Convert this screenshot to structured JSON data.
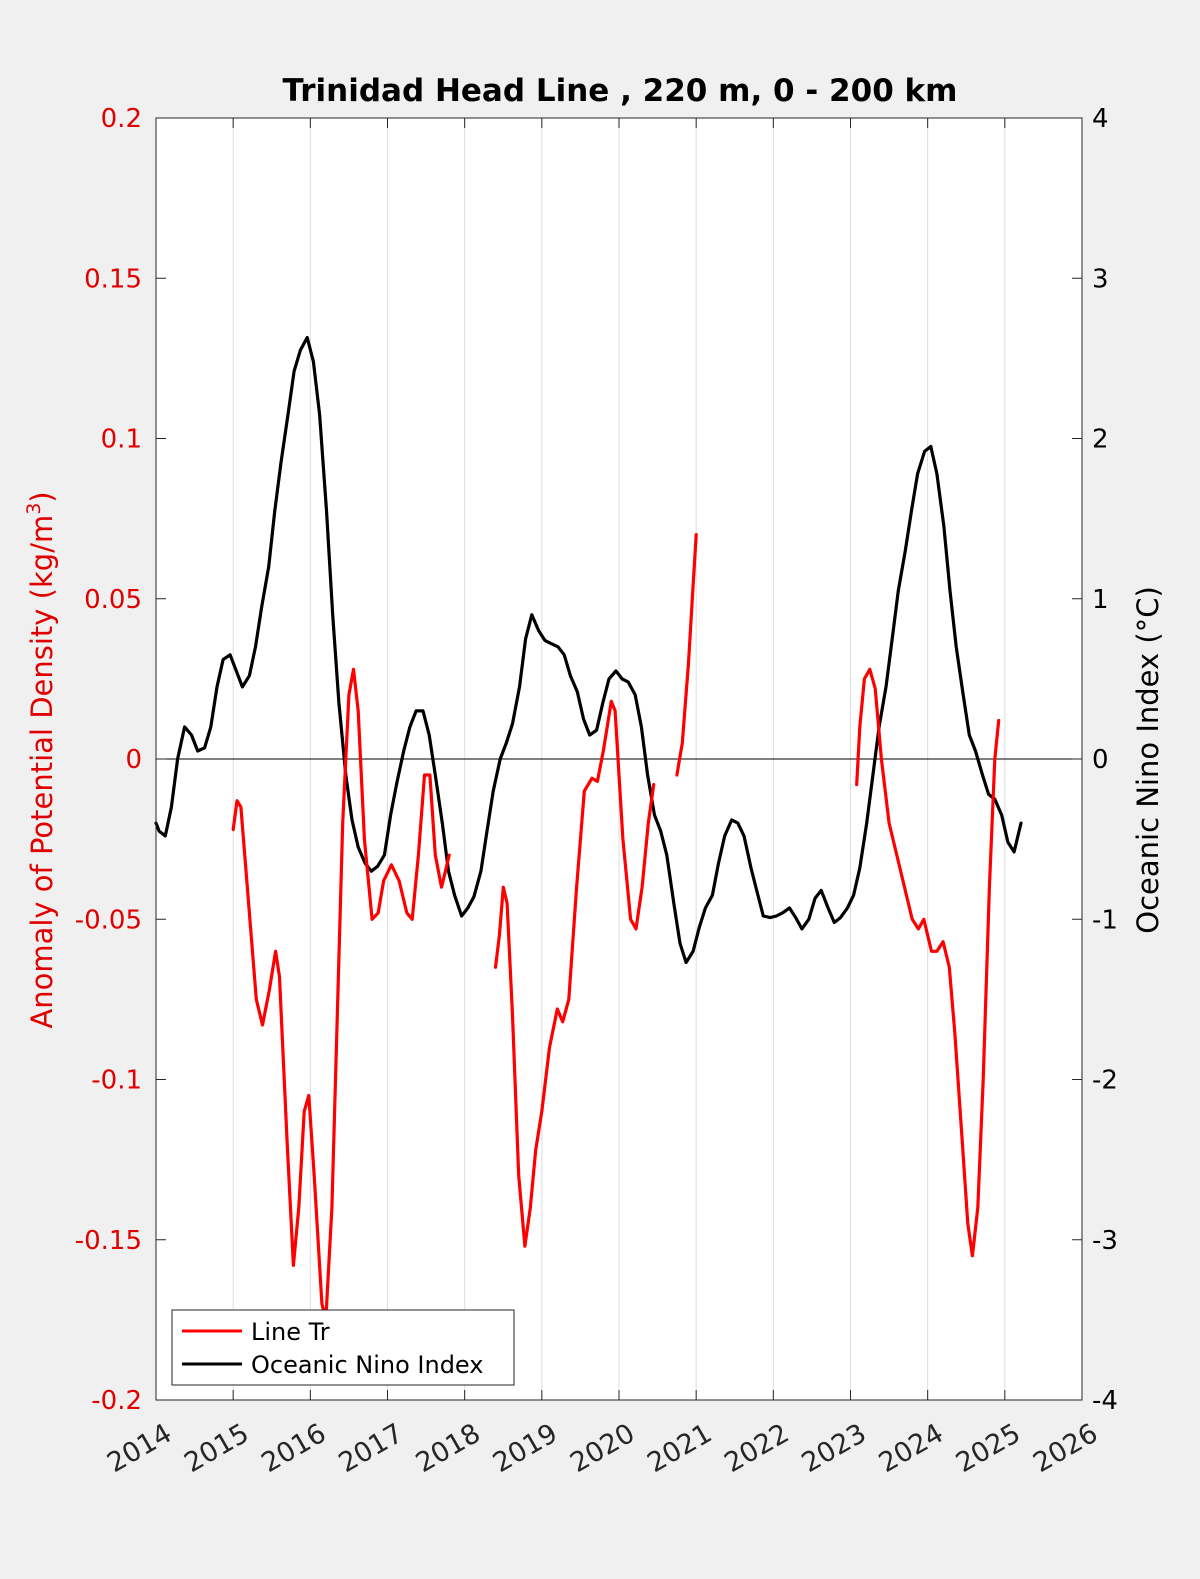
{
  "chart_data": {
    "type": "line",
    "title": "Trinidad Head Line , 220 m, 0 - 200 km",
    "ylabel_left": "Anomaly of Potential Density (kg/m",
    "ylabel_left_sup": "3",
    "ylabel_left_close": ")",
    "ylabel_right": "Oceanic Nino Index (°C)",
    "xlim": [
      2014,
      2026
    ],
    "ylim_left": [
      -0.2,
      0.2
    ],
    "ylim_right": [
      -4,
      4
    ],
    "x_ticks": [
      2014,
      2015,
      2016,
      2017,
      2018,
      2019,
      2020,
      2021,
      2022,
      2023,
      2024,
      2025,
      2026
    ],
    "x_tick_labels": [
      "2014",
      "2015",
      "2016",
      "2017",
      "2018",
      "2019",
      "2020",
      "2021",
      "2022",
      "2023",
      "2024",
      "2025",
      "2026"
    ],
    "y_left_ticks": [
      -0.2,
      -0.15,
      -0.1,
      -0.05,
      0,
      0.05,
      0.1,
      0.15,
      0.2
    ],
    "y_left_tick_labels": [
      "-0.2",
      "-0.15",
      "-0.1",
      "-0.05",
      "0",
      "0.05",
      "0.1",
      "0.15",
      "0.2"
    ],
    "y_right_ticks": [
      -4,
      -3,
      -2,
      -1,
      0,
      1,
      2,
      3,
      4
    ],
    "y_right_tick_labels": [
      "-4",
      "-3",
      "-2",
      "-1",
      "0",
      "1",
      "2",
      "3",
      "4"
    ],
    "grid": "vertical",
    "zero_line": true,
    "legend_position": "bottom-left",
    "colors": {
      "left_axis": "#e00000",
      "right_axis": "#000000",
      "line_tr": "#ff0000",
      "oni": "#000000",
      "background": "#f0f0f0",
      "plot_bg": "#ffffff",
      "grid": "#dddddd"
    },
    "series": [
      {
        "name": "Line Tr",
        "axis": "left",
        "color": "#ff0000",
        "segments": [
          [
            [
              2015.0,
              -0.022
            ],
            [
              2015.05,
              -0.013
            ],
            [
              2015.1,
              -0.015
            ],
            [
              2015.2,
              -0.045
            ],
            [
              2015.3,
              -0.075
            ],
            [
              2015.38,
              -0.083
            ],
            [
              2015.47,
              -0.072
            ],
            [
              2015.55,
              -0.06
            ],
            [
              2015.6,
              -0.068
            ],
            [
              2015.7,
              -0.12
            ],
            [
              2015.78,
              -0.158
            ],
            [
              2015.85,
              -0.14
            ],
            [
              2015.92,
              -0.11
            ],
            [
              2015.98,
              -0.105
            ],
            [
              2016.05,
              -0.13
            ],
            [
              2016.15,
              -0.17
            ],
            [
              2016.2,
              -0.175
            ],
            [
              2016.28,
              -0.14
            ],
            [
              2016.35,
              -0.08
            ],
            [
              2016.42,
              -0.02
            ],
            [
              2016.5,
              0.02
            ],
            [
              2016.56,
              0.028
            ],
            [
              2016.62,
              0.015
            ],
            [
              2016.7,
              -0.025
            ],
            [
              2016.8,
              -0.05
            ],
            [
              2016.88,
              -0.048
            ],
            [
              2016.95,
              -0.038
            ],
            [
              2017.05,
              -0.033
            ],
            [
              2017.15,
              -0.038
            ],
            [
              2017.25,
              -0.048
            ],
            [
              2017.32,
              -0.05
            ],
            [
              2017.4,
              -0.03
            ],
            [
              2017.48,
              -0.005
            ],
            [
              2017.55,
              -0.005
            ],
            [
              2017.62,
              -0.03
            ],
            [
              2017.7,
              -0.04
            ],
            [
              2017.75,
              -0.035
            ],
            [
              2017.8,
              -0.03
            ]
          ],
          [
            [
              2018.4,
              -0.065
            ],
            [
              2018.45,
              -0.055
            ],
            [
              2018.5,
              -0.04
            ],
            [
              2018.55,
              -0.045
            ],
            [
              2018.62,
              -0.08
            ],
            [
              2018.7,
              -0.13
            ],
            [
              2018.78,
              -0.152
            ],
            [
              2018.85,
              -0.14
            ],
            [
              2018.92,
              -0.122
            ],
            [
              2019.0,
              -0.11
            ],
            [
              2019.1,
              -0.09
            ],
            [
              2019.2,
              -0.078
            ],
            [
              2019.27,
              -0.082
            ],
            [
              2019.35,
              -0.075
            ],
            [
              2019.45,
              -0.04
            ],
            [
              2019.55,
              -0.01
            ],
            [
              2019.65,
              -0.006
            ],
            [
              2019.72,
              -0.007
            ],
            [
              2019.8,
              0.003
            ],
            [
              2019.9,
              0.018
            ],
            [
              2019.95,
              0.015
            ],
            [
              2020.05,
              -0.025
            ],
            [
              2020.15,
              -0.05
            ],
            [
              2020.22,
              -0.053
            ],
            [
              2020.3,
              -0.04
            ],
            [
              2020.38,
              -0.02
            ],
            [
              2020.45,
              -0.008
            ]
          ],
          [
            [
              2020.75,
              -0.005
            ],
            [
              2020.82,
              0.005
            ],
            [
              2020.9,
              0.03
            ],
            [
              2020.95,
              0.05
            ],
            [
              2021.0,
              0.07
            ]
          ],
          [
            [
              2023.08,
              -0.008
            ],
            [
              2023.12,
              0.01
            ],
            [
              2023.18,
              0.025
            ],
            [
              2023.25,
              0.028
            ],
            [
              2023.32,
              0.022
            ],
            [
              2023.4,
              0.0
            ],
            [
              2023.5,
              -0.02
            ],
            [
              2023.6,
              -0.03
            ],
            [
              2023.7,
              -0.04
            ],
            [
              2023.8,
              -0.05
            ],
            [
              2023.88,
              -0.053
            ],
            [
              2023.95,
              -0.05
            ],
            [
              2024.05,
              -0.06
            ],
            [
              2024.12,
              -0.06
            ],
            [
              2024.2,
              -0.057
            ],
            [
              2024.28,
              -0.065
            ],
            [
              2024.35,
              -0.085
            ],
            [
              2024.45,
              -0.12
            ],
            [
              2024.52,
              -0.145
            ],
            [
              2024.58,
              -0.155
            ],
            [
              2024.65,
              -0.14
            ],
            [
              2024.72,
              -0.1
            ],
            [
              2024.8,
              -0.04
            ],
            [
              2024.87,
              0.0
            ],
            [
              2024.92,
              0.012
            ]
          ]
        ]
      },
      {
        "name": "Oceanic Nino Index",
        "axis": "right",
        "color": "#000000",
        "segments": [
          [
            [
              2014.0,
              -0.4
            ],
            [
              2014.04,
              -0.45
            ],
            [
              2014.12,
              -0.48
            ],
            [
              2014.2,
              -0.3
            ],
            [
              2014.28,
              0.0
            ],
            [
              2014.37,
              0.2
            ],
            [
              2014.46,
              0.15
            ],
            [
              2014.54,
              0.05
            ],
            [
              2014.63,
              0.07
            ],
            [
              2014.71,
              0.2
            ],
            [
              2014.79,
              0.45
            ],
            [
              2014.87,
              0.62
            ],
            [
              2014.96,
              0.65
            ],
            [
              2015.04,
              0.55
            ],
            [
              2015.12,
              0.45
            ],
            [
              2015.21,
              0.52
            ],
            [
              2015.29,
              0.7
            ],
            [
              2015.37,
              0.95
            ],
            [
              2015.46,
              1.2
            ],
            [
              2015.54,
              1.55
            ],
            [
              2015.62,
              1.85
            ],
            [
              2015.71,
              2.15
            ],
            [
              2015.79,
              2.42
            ],
            [
              2015.87,
              2.55
            ],
            [
              2015.96,
              2.63
            ],
            [
              2016.04,
              2.48
            ],
            [
              2016.12,
              2.15
            ],
            [
              2016.21,
              1.55
            ],
            [
              2016.29,
              0.9
            ],
            [
              2016.37,
              0.35
            ],
            [
              2016.46,
              -0.1
            ],
            [
              2016.54,
              -0.38
            ],
            [
              2016.62,
              -0.55
            ],
            [
              2016.71,
              -0.65
            ],
            [
              2016.79,
              -0.7
            ],
            [
              2016.87,
              -0.67
            ],
            [
              2016.96,
              -0.6
            ],
            [
              2017.04,
              -0.35
            ],
            [
              2017.12,
              -0.15
            ],
            [
              2017.21,
              0.05
            ],
            [
              2017.29,
              0.2
            ],
            [
              2017.37,
              0.3
            ],
            [
              2017.46,
              0.3
            ],
            [
              2017.54,
              0.15
            ],
            [
              2017.62,
              -0.1
            ],
            [
              2017.71,
              -0.4
            ],
            [
              2017.79,
              -0.7
            ],
            [
              2017.87,
              -0.85
            ],
            [
              2017.96,
              -0.98
            ],
            [
              2018.04,
              -0.93
            ],
            [
              2018.12,
              -0.86
            ],
            [
              2018.21,
              -0.7
            ],
            [
              2018.29,
              -0.45
            ],
            [
              2018.37,
              -0.2
            ],
            [
              2018.46,
              0.0
            ],
            [
              2018.54,
              0.1
            ],
            [
              2018.62,
              0.22
            ],
            [
              2018.71,
              0.45
            ],
            [
              2018.79,
              0.75
            ],
            [
              2018.87,
              0.9
            ],
            [
              2018.96,
              0.8
            ],
            [
              2019.04,
              0.74
            ],
            [
              2019.12,
              0.72
            ],
            [
              2019.21,
              0.7
            ],
            [
              2019.29,
              0.65
            ],
            [
              2019.37,
              0.52
            ],
            [
              2019.46,
              0.42
            ],
            [
              2019.54,
              0.25
            ],
            [
              2019.62,
              0.15
            ],
            [
              2019.71,
              0.18
            ],
            [
              2019.79,
              0.35
            ],
            [
              2019.87,
              0.5
            ],
            [
              2019.96,
              0.55
            ],
            [
              2020.04,
              0.5
            ],
            [
              2020.12,
              0.48
            ],
            [
              2020.21,
              0.4
            ],
            [
              2020.29,
              0.2
            ],
            [
              2020.37,
              -0.1
            ],
            [
              2020.46,
              -0.35
            ],
            [
              2020.54,
              -0.45
            ],
            [
              2020.62,
              -0.6
            ],
            [
              2020.71,
              -0.9
            ],
            [
              2020.79,
              -1.15
            ],
            [
              2020.87,
              -1.27
            ],
            [
              2020.96,
              -1.2
            ],
            [
              2021.04,
              -1.05
            ],
            [
              2021.12,
              -0.93
            ],
            [
              2021.21,
              -0.85
            ],
            [
              2021.29,
              -0.65
            ],
            [
              2021.37,
              -0.48
            ],
            [
              2021.46,
              -0.38
            ],
            [
              2021.54,
              -0.4
            ],
            [
              2021.62,
              -0.48
            ],
            [
              2021.71,
              -0.68
            ],
            [
              2021.79,
              -0.83
            ],
            [
              2021.87,
              -0.98
            ],
            [
              2021.96,
              -0.99
            ],
            [
              2022.04,
              -0.98
            ],
            [
              2022.12,
              -0.96
            ],
            [
              2022.21,
              -0.93
            ],
            [
              2022.29,
              -0.99
            ],
            [
              2022.37,
              -1.06
            ],
            [
              2022.46,
              -1.0
            ],
            [
              2022.54,
              -0.87
            ],
            [
              2022.62,
              -0.82
            ],
            [
              2022.71,
              -0.93
            ],
            [
              2022.79,
              -1.02
            ],
            [
              2022.87,
              -0.99
            ],
            [
              2022.96,
              -0.93
            ],
            [
              2023.04,
              -0.85
            ],
            [
              2023.12,
              -0.68
            ],
            [
              2023.21,
              -0.4
            ],
            [
              2023.29,
              -0.1
            ],
            [
              2023.37,
              0.2
            ],
            [
              2023.46,
              0.45
            ],
            [
              2023.54,
              0.75
            ],
            [
              2023.62,
              1.05
            ],
            [
              2023.71,
              1.3
            ],
            [
              2023.79,
              1.55
            ],
            [
              2023.87,
              1.78
            ],
            [
              2023.96,
              1.92
            ],
            [
              2024.04,
              1.95
            ],
            [
              2024.12,
              1.78
            ],
            [
              2024.21,
              1.45
            ],
            [
              2024.29,
              1.05
            ],
            [
              2024.37,
              0.7
            ],
            [
              2024.46,
              0.4
            ],
            [
              2024.54,
              0.15
            ],
            [
              2024.62,
              0.05
            ],
            [
              2024.71,
              -0.1
            ],
            [
              2024.79,
              -0.22
            ],
            [
              2024.87,
              -0.25
            ],
            [
              2024.96,
              -0.35
            ],
            [
              2025.04,
              -0.52
            ],
            [
              2025.12,
              -0.58
            ],
            [
              2025.21,
              -0.4
            ]
          ]
        ]
      }
    ]
  }
}
